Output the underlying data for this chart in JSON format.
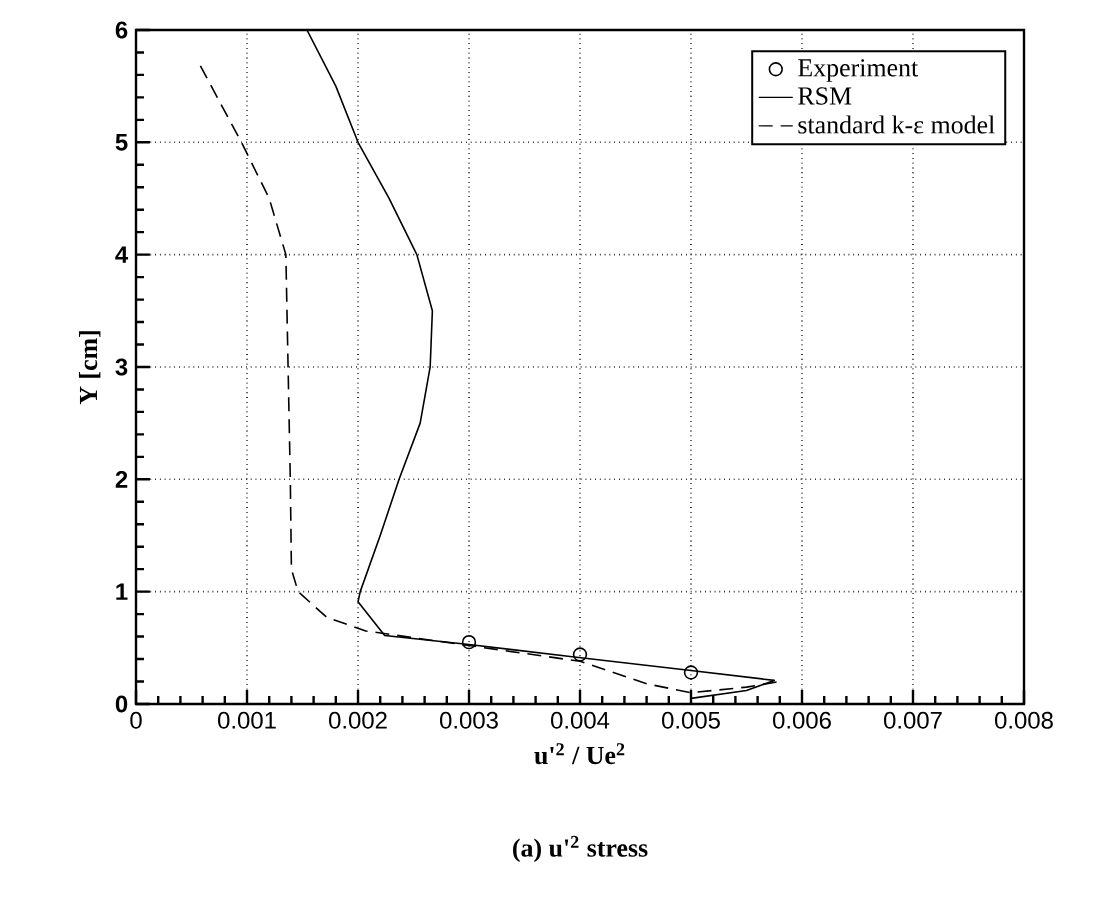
{
  "chart_data": {
    "type": "line",
    "title": "(a) u'$^{2}$ stress",
    "xlabel": "u'$^{2}$ / Ue$^{2}$",
    "ylabel": "Y [cm]",
    "xlim": [
      0,
      0.008
    ],
    "ylim": [
      0,
      6
    ],
    "xticks": [
      0,
      {
        "value": 0.001,
        "label": "0.001"
      },
      {
        "value": 0.002,
        "label": "0.002"
      },
      {
        "value": 0.003,
        "label": "0.003"
      },
      {
        "value": 0.004,
        "label": "0.004"
      },
      {
        "value": 0.005,
        "label": "0.005"
      },
      {
        "value": 0.006,
        "label": "0.006"
      },
      {
        "value": 0.007,
        "label": "0.007"
      },
      {
        "value": 0.008,
        "label": "0.008"
      }
    ],
    "yticks": [
      0,
      1,
      2,
      3,
      4,
      5,
      6
    ],
    "grid": true,
    "legend": "top right",
    "series": [
      {
        "name": "Experiment",
        "type": "scatter",
        "marker": "circle",
        "color": "#000000",
        "x": [
          0.003,
          0.004,
          0.005
        ],
        "values": [
          0.55,
          0.44,
          0.28
        ]
      },
      {
        "name": "RSM",
        "line_style": "solid",
        "color": "#000000",
        "x": [
          0.00154,
          0.0018,
          0.002,
          0.00228,
          0.00253,
          0.00267,
          0.00265,
          0.00256,
          0.00237,
          0.0022,
          0.00202,
          0.002,
          0.00224,
          0.003,
          0.00393,
          0.00498,
          0.00575,
          0.0055,
          0.005
        ],
        "values": [
          6,
          5.5,
          5,
          4.5,
          4,
          3.5,
          3,
          2.5,
          2,
          1.5,
          1,
          0.91,
          0.61,
          0.53,
          0.42,
          0.3,
          0.21,
          0.12,
          0.05
        ]
      },
      {
        "name": "standard k-ε model",
        "line_style": "dashed",
        "color": "#000000",
        "x": [
          0.00058,
          0.00095,
          0.0012,
          0.00135,
          0.00137,
          0.00139,
          0.0014,
          0.00146,
          0.00172,
          0.00207,
          0.003,
          0.004,
          0.0046,
          0.005,
          0.0055,
          0.0058
        ],
        "values": [
          5.68,
          5,
          4.5,
          4,
          3,
          2,
          1.2,
          1,
          0.77,
          0.65,
          0.52,
          0.38,
          0.18,
          0.1,
          0.15,
          0.2
        ]
      }
    ]
  }
}
